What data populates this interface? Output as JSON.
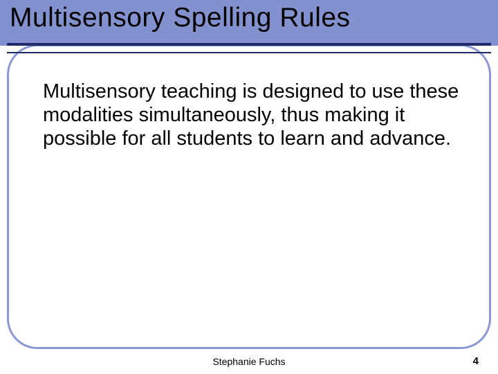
{
  "colors": {
    "top_band": "#8491cf",
    "hr": "#1f2a68",
    "frame_border": "#8a97d4",
    "background": "#ffffff",
    "text": "#000000"
  },
  "title": "Multisensory Spelling Rules",
  "body": "Multisensory teaching is designed to use these modalities simultaneously, thus making it possible for all students to learn and advance.",
  "footer": {
    "author": "Stephanie Fuchs",
    "page": "4"
  },
  "typography": {
    "title_fontsize": 39,
    "body_fontsize": 29,
    "footer_fontsize": 14
  }
}
